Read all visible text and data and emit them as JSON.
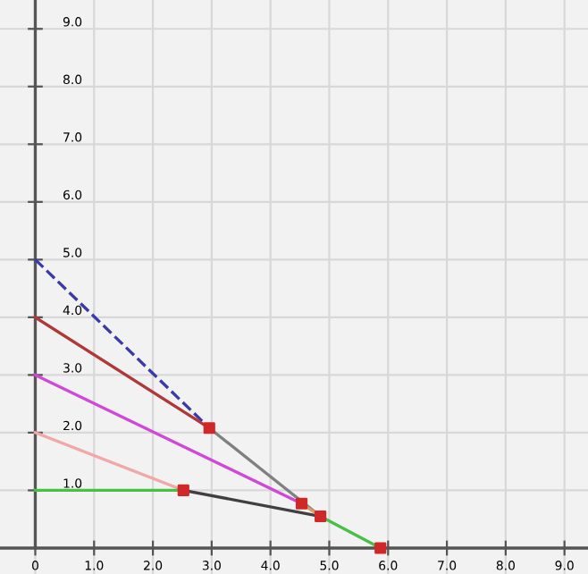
{
  "chart_data": {
    "type": "line",
    "xlim": [
      -0.6,
      9.4
    ],
    "ylim": [
      -0.45,
      9.5
    ],
    "xticks": [
      {
        "value": 0,
        "label": "0"
      },
      {
        "value": 1,
        "label": "1.0"
      },
      {
        "value": 2,
        "label": "2.0"
      },
      {
        "value": 3,
        "label": "3.0"
      },
      {
        "value": 4,
        "label": "4.0"
      },
      {
        "value": 5,
        "label": "5.0"
      },
      {
        "value": 6,
        "label": "6.0"
      },
      {
        "value": 7,
        "label": "7.0"
      },
      {
        "value": 8,
        "label": "8.0"
      },
      {
        "value": 9,
        "label": "9.0"
      }
    ],
    "yticks": [
      {
        "value": 1,
        "label": "1.0"
      },
      {
        "value": 2,
        "label": "2.0"
      },
      {
        "value": 3,
        "label": "3.0"
      },
      {
        "value": 4,
        "label": "4.0"
      },
      {
        "value": 5,
        "label": "5.0"
      },
      {
        "value": 6,
        "label": "6.0"
      },
      {
        "value": 7,
        "label": "7.0"
      },
      {
        "value": 8,
        "label": "8.0"
      },
      {
        "value": 9,
        "label": "9.0"
      }
    ],
    "grid": true,
    "legend": false,
    "marker": "none",
    "series": [
      {
        "color": "#3a3aa8",
        "x": [
          0,
          2.96
        ],
        "values": [
          5,
          2.08
        ],
        "line_style": "dashed"
      },
      {
        "color": "#b03838",
        "x": [
          0,
          2.96
        ],
        "values": [
          4,
          2.08
        ]
      },
      {
        "color": "#d048d8",
        "x": [
          0,
          4.53
        ],
        "values": [
          3,
          0.77
        ]
      },
      {
        "color": "#f0a8a8",
        "x": [
          0,
          2.52
        ],
        "values": [
          2,
          1.0
        ]
      },
      {
        "color": "#48c048",
        "x": [
          0,
          2.52
        ],
        "values": [
          1,
          1.0
        ]
      },
      {
        "color": "#808080",
        "x": [
          2.96,
          4.85
        ],
        "values": [
          2.08,
          0.55
        ]
      },
      {
        "color": "#404040",
        "x": [
          2.52,
          4.85
        ],
        "values": [
          1.0,
          0.55
        ]
      },
      {
        "color": "#e09868",
        "x": [
          4.53,
          4.85
        ],
        "values": [
          0.77,
          0.55
        ]
      },
      {
        "color": "#48c048",
        "x": [
          4.85,
          5.87
        ],
        "values": [
          0.55,
          0
        ]
      },
      {
        "type": "scatter",
        "color": "#d02828",
        "marker": "square",
        "x": [
          2.96,
          2.52,
          4.53,
          4.85,
          5.87
        ],
        "values": [
          2.08,
          1.0,
          0.77,
          0.55,
          0
        ]
      }
    ]
  }
}
